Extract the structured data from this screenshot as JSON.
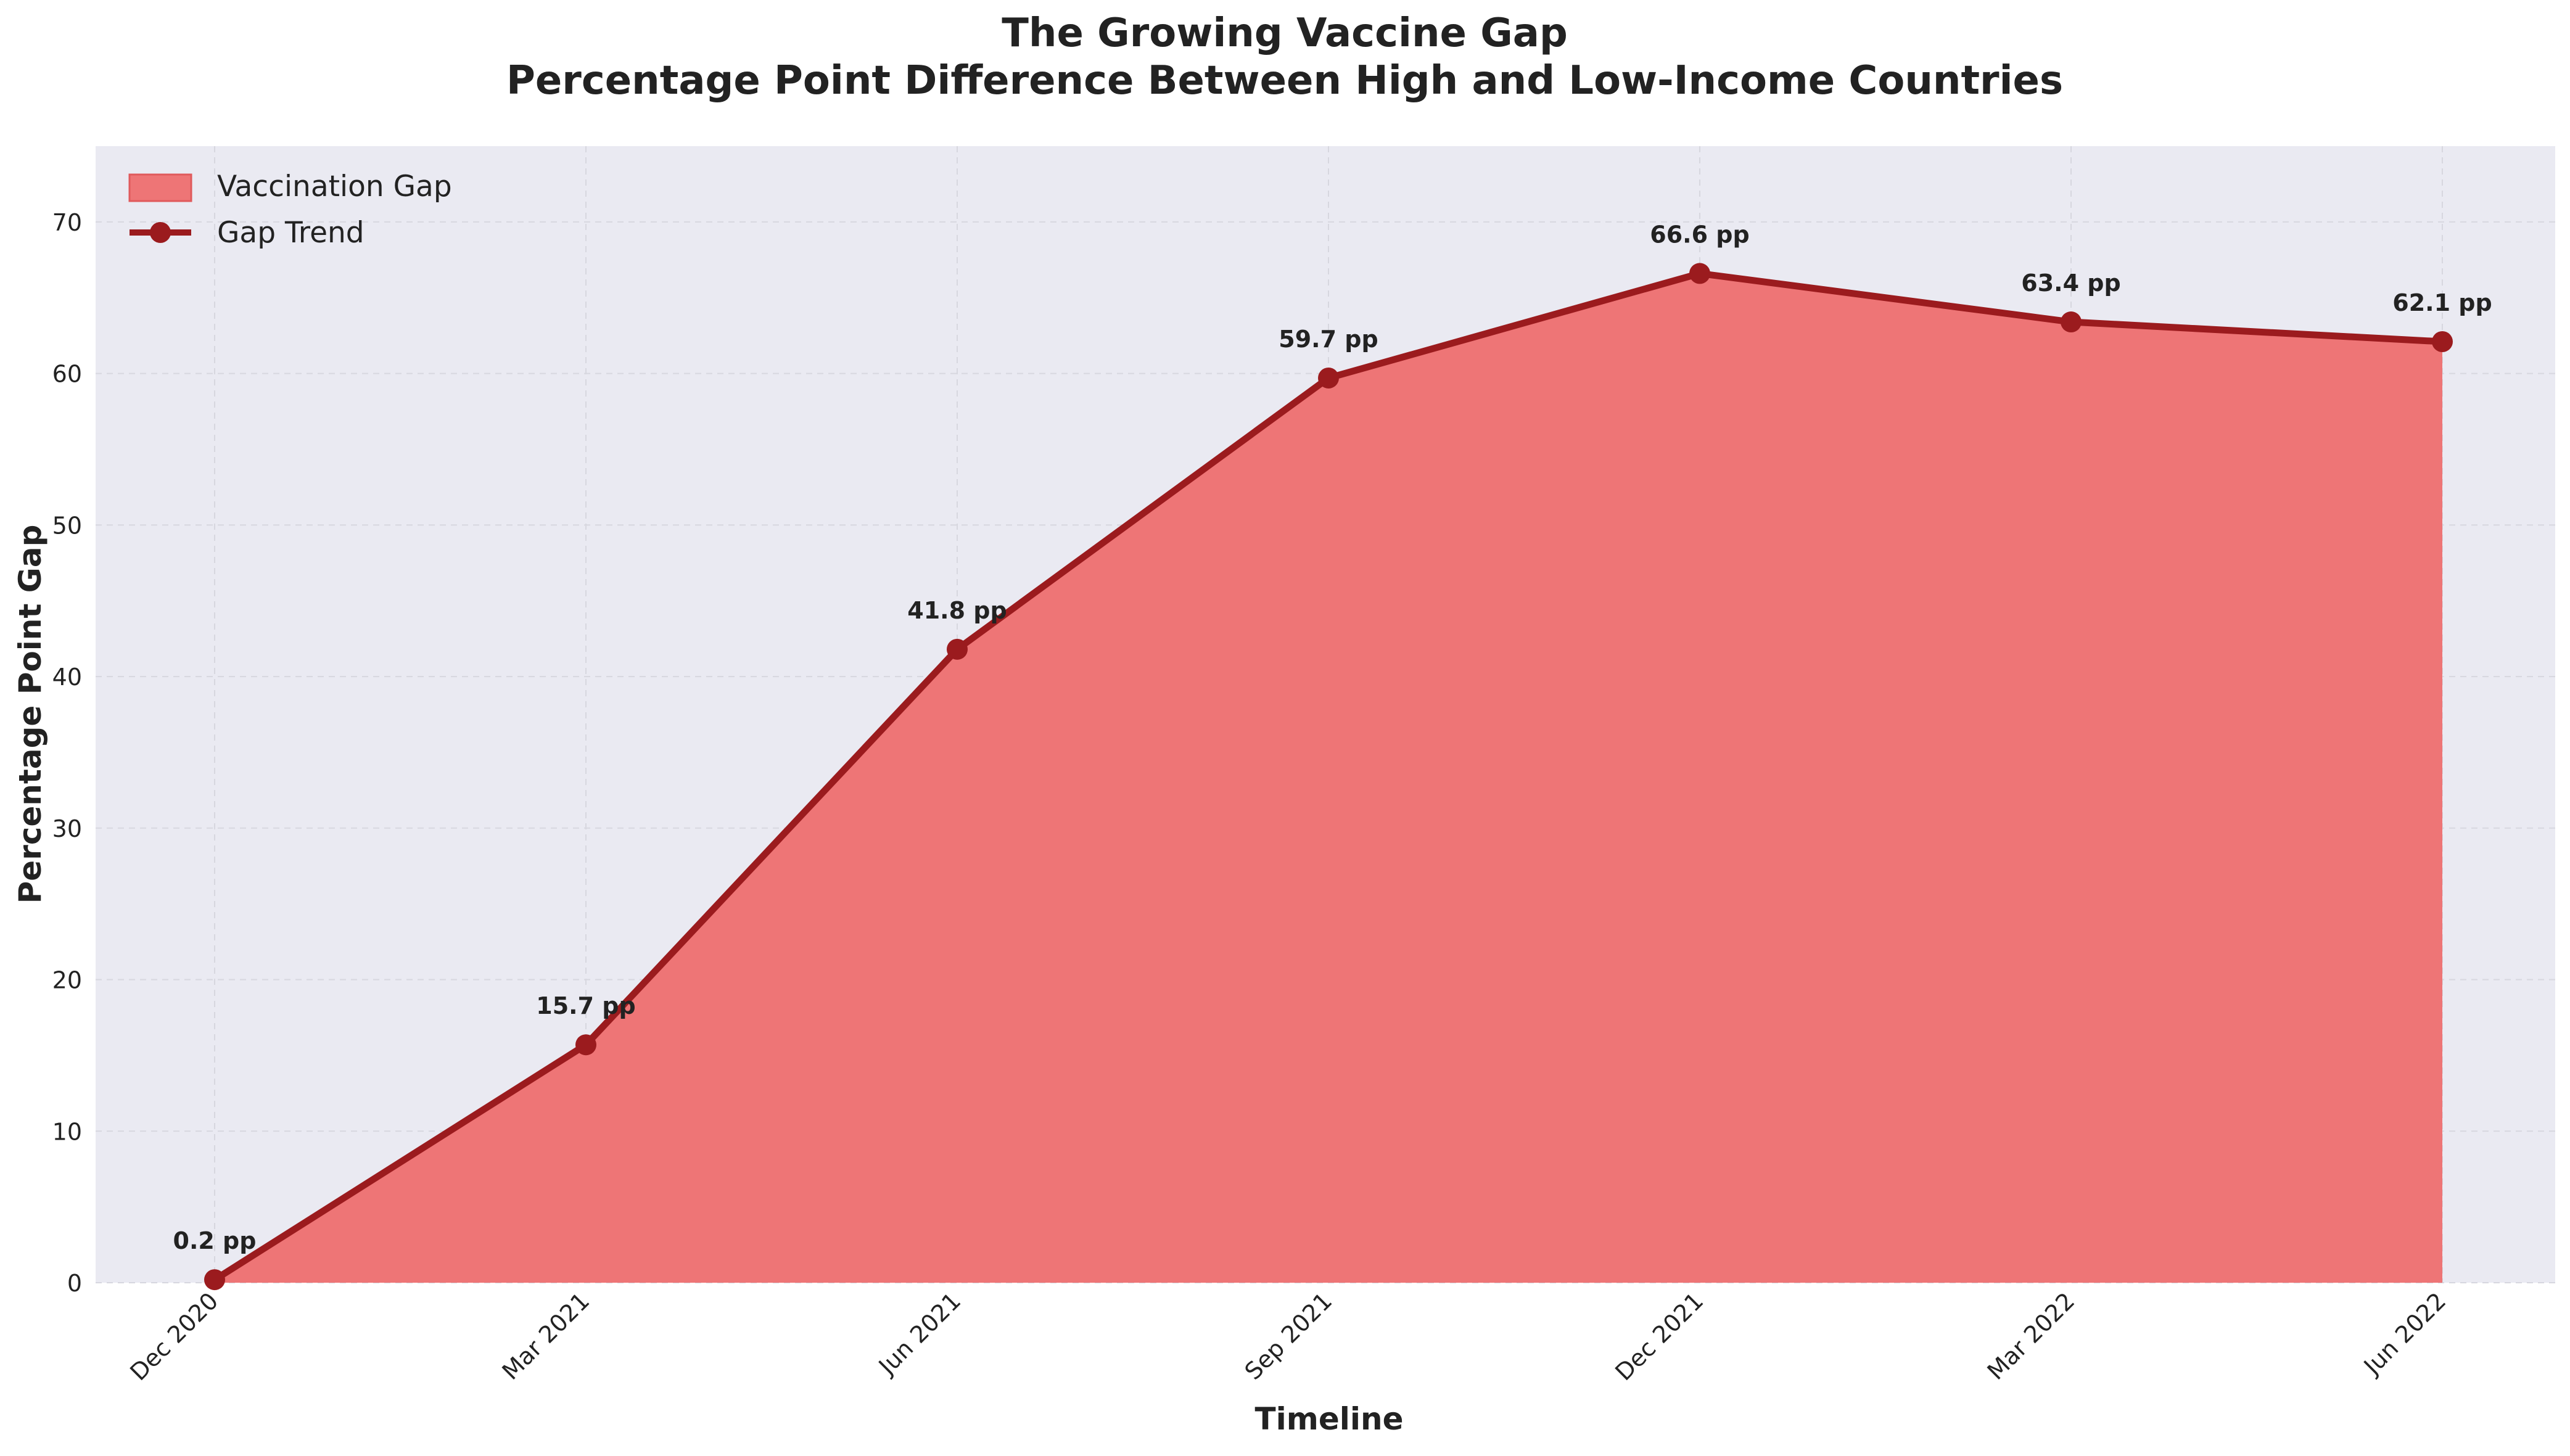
{
  "chart_data": {
    "type": "area",
    "title": "The Growing Vaccine Gap",
    "subtitle": "Percentage Point Difference Between High and Low-Income Countries",
    "xlabel": "Timeline",
    "ylabel": "Percentage Point Gap",
    "categories": [
      "Dec 2020",
      "Mar 2021",
      "Jun 2021",
      "Sep 2021",
      "Dec 2021",
      "Mar 2022",
      "Jun 2022"
    ],
    "series": [
      {
        "name": "Vaccination Gap",
        "values": [
          0.2,
          15.7,
          41.8,
          59.7,
          66.6,
          63.4,
          62.1
        ]
      }
    ],
    "legend": [
      "Vaccination Gap",
      "Gap Trend"
    ],
    "data_labels": [
      "0.2 pp",
      "15.7 pp",
      "41.8 pp",
      "59.7 pp",
      "66.6 pp",
      "63.4 pp",
      "62.1 pp"
    ],
    "ylim": [
      0,
      75
    ],
    "yticks": [
      "0",
      "10",
      "20",
      "30",
      "40",
      "50",
      "60",
      "70"
    ],
    "grid": true,
    "legend_position": "top-left",
    "colors": {
      "area": "#ee7576",
      "line": "#9b1b1e",
      "plot_bg": "#eaeaf2",
      "grid": "#d7d7df",
      "text": "#222222"
    }
  }
}
